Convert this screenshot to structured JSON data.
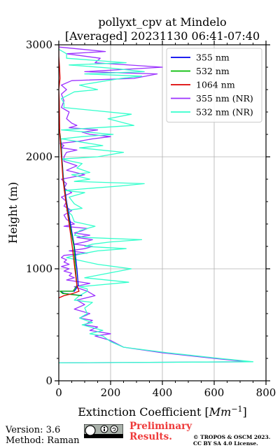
{
  "chart_data": {
    "type": "line",
    "title": "pollyxt_cpv at Mindelo",
    "subtitle": "[Averaged] 20231130 06:41-07:40",
    "xlabel_prefix": "Extinction Coefficient [",
    "xlabel_unit": "Mm",
    "xlabel_exp": "−1",
    "xlabel_suffix": "]",
    "ylabel": "Height (m)",
    "xlim": [
      0,
      800
    ],
    "ylim": [
      0,
      3000
    ],
    "xticks": [
      0,
      200,
      400,
      600,
      800
    ],
    "yticks": [
      0,
      1000,
      2000,
      3000
    ],
    "grid": true,
    "legend_position": "top-right",
    "series": [
      {
        "name": "355 nm",
        "color": "#0000ee",
        "points": [
          [
            90,
            760
          ],
          [
            20,
            780
          ],
          [
            5,
            800
          ],
          [
            60,
            800
          ],
          [
            75,
            850
          ],
          [
            70,
            1000
          ],
          [
            60,
            1200
          ],
          [
            45,
            1400
          ],
          [
            30,
            1600
          ],
          [
            18,
            1800
          ],
          [
            12,
            2000
          ],
          [
            10,
            2100
          ],
          [
            5,
            2200
          ],
          [
            0,
            2250
          ]
        ]
      },
      {
        "name": "532 nm",
        "color": "#00bb00",
        "points": [
          [
            85,
            760
          ],
          [
            15,
            780
          ],
          [
            5,
            800
          ],
          [
            55,
            800
          ],
          [
            70,
            850
          ],
          [
            65,
            1000
          ],
          [
            58,
            1200
          ],
          [
            42,
            1400
          ],
          [
            28,
            1600
          ],
          [
            17,
            1800
          ],
          [
            11,
            2000
          ],
          [
            9,
            2100
          ],
          [
            5,
            2200
          ],
          [
            0,
            2250
          ]
        ]
      },
      {
        "name": "1064 nm",
        "color": "#dd0000",
        "points": [
          [
            0,
            740
          ],
          [
            20,
            760
          ],
          [
            55,
            780
          ],
          [
            78,
            800
          ],
          [
            70,
            850
          ],
          [
            62,
            1000
          ],
          [
            52,
            1200
          ],
          [
            40,
            1400
          ],
          [
            27,
            1600
          ],
          [
            16,
            1800
          ],
          [
            10,
            2000
          ],
          [
            7,
            2100
          ],
          [
            4,
            2200
          ],
          [
            3,
            2300
          ],
          [
            2,
            2500
          ],
          [
            0,
            2600
          ],
          [
            5,
            2700
          ],
          [
            3,
            2800
          ],
          [
            0,
            2900
          ],
          [
            0,
            3000
          ]
        ]
      },
      {
        "name": "355 nm (NR)",
        "color": "#9b30ff",
        "points": [
          [
            0,
            160
          ],
          [
            730,
            170
          ],
          [
            600,
            200
          ],
          [
            400,
            250
          ],
          [
            250,
            300
          ],
          [
            200,
            360
          ],
          [
            140,
            400
          ],
          [
            200,
            420
          ],
          [
            120,
            450
          ],
          [
            150,
            480
          ],
          [
            100,
            500
          ],
          [
            130,
            540
          ],
          [
            80,
            560
          ],
          [
            120,
            600
          ],
          [
            60,
            640
          ],
          [
            100,
            680
          ],
          [
            70,
            720
          ],
          [
            140,
            760
          ],
          [
            110,
            800
          ],
          [
            60,
            840
          ],
          [
            120,
            870
          ],
          [
            30,
            900
          ],
          [
            60,
            920
          ],
          [
            40,
            940
          ],
          [
            50,
            960
          ],
          [
            20,
            980
          ],
          [
            40,
            1000
          ],
          [
            10,
            1020
          ],
          [
            40,
            1040
          ],
          [
            20,
            1060
          ],
          [
            30,
            1080
          ],
          [
            10,
            1100
          ],
          [
            20,
            1120
          ],
          [
            110,
            1140
          ],
          [
            40,
            1160
          ],
          [
            100,
            1180
          ],
          [
            130,
            1200
          ],
          [
            60,
            1220
          ],
          [
            100,
            1240
          ],
          [
            130,
            1260
          ],
          [
            70,
            1280
          ],
          [
            120,
            1300
          ],
          [
            60,
            1320
          ],
          [
            90,
            1340
          ],
          [
            110,
            1360
          ],
          [
            20,
            1380
          ],
          [
            60,
            1400
          ],
          [
            30,
            1440
          ],
          [
            20,
            1480
          ],
          [
            50,
            1520
          ],
          [
            20,
            1560
          ],
          [
            30,
            1600
          ],
          [
            10,
            1640
          ],
          [
            50,
            1680
          ],
          [
            20,
            1720
          ],
          [
            30,
            1760
          ],
          [
            10,
            1800
          ],
          [
            100,
            1840
          ],
          [
            30,
            1880
          ],
          [
            70,
            1920
          ],
          [
            20,
            1960
          ],
          [
            20,
            2000
          ],
          [
            30,
            2040
          ],
          [
            70,
            2060
          ],
          [
            10,
            2080
          ],
          [
            20,
            2100
          ],
          [
            5,
            2120
          ],
          [
            80,
            2140
          ],
          [
            130,
            2160
          ],
          [
            200,
            2180
          ],
          [
            120,
            2200
          ],
          [
            90,
            2220
          ],
          [
            150,
            2240
          ],
          [
            40,
            2260
          ],
          [
            70,
            2280
          ],
          [
            50,
            2300
          ],
          [
            30,
            2340
          ],
          [
            40,
            2400
          ],
          [
            10,
            2440
          ],
          [
            20,
            2500
          ],
          [
            10,
            2560
          ],
          [
            30,
            2600
          ],
          [
            10,
            2640
          ],
          [
            50,
            2680
          ],
          [
            290,
            2700
          ],
          [
            380,
            2740
          ],
          [
            100,
            2760
          ],
          [
            400,
            2800
          ],
          [
            140,
            2840
          ],
          [
            160,
            2880
          ],
          [
            30,
            2920
          ],
          [
            180,
            2940
          ],
          [
            0,
            2980
          ],
          [
            0,
            3000
          ]
        ]
      },
      {
        "name": "532 nm (NR)",
        "color": "#33ffcc",
        "points": [
          [
            0,
            160
          ],
          [
            750,
            170
          ],
          [
            620,
            200
          ],
          [
            420,
            250
          ],
          [
            250,
            300
          ],
          [
            200,
            350
          ],
          [
            170,
            400
          ],
          [
            120,
            420
          ],
          [
            170,
            450
          ],
          [
            90,
            500
          ],
          [
            130,
            520
          ],
          [
            80,
            560
          ],
          [
            110,
            600
          ],
          [
            100,
            650
          ],
          [
            130,
            700
          ],
          [
            60,
            720
          ],
          [
            80,
            760
          ],
          [
            110,
            800
          ],
          [
            110,
            820
          ],
          [
            80,
            840
          ],
          [
            270,
            880
          ],
          [
            100,
            920
          ],
          [
            190,
            960
          ],
          [
            280,
            1000
          ],
          [
            150,
            1040
          ],
          [
            30,
            1100
          ],
          [
            80,
            1130
          ],
          [
            150,
            1160
          ],
          [
            260,
            1180
          ],
          [
            100,
            1200
          ],
          [
            130,
            1220
          ],
          [
            200,
            1240
          ],
          [
            320,
            1260
          ],
          [
            100,
            1280
          ],
          [
            60,
            1300
          ],
          [
            80,
            1340
          ],
          [
            140,
            1380
          ],
          [
            60,
            1420
          ],
          [
            50,
            1480
          ],
          [
            30,
            1520
          ],
          [
            90,
            1540
          ],
          [
            60,
            1580
          ],
          [
            40,
            1640
          ],
          [
            100,
            1680
          ],
          [
            20,
            1700
          ],
          [
            240,
            1740
          ],
          [
            330,
            1760
          ],
          [
            60,
            1780
          ],
          [
            120,
            1800
          ],
          [
            50,
            1840
          ],
          [
            120,
            1860
          ],
          [
            70,
            1900
          ],
          [
            90,
            1940
          ],
          [
            10,
            1980
          ],
          [
            150,
            2000
          ],
          [
            250,
            2040
          ],
          [
            80,
            2080
          ],
          [
            170,
            2100
          ],
          [
            10,
            2160
          ],
          [
            90,
            2180
          ],
          [
            210,
            2200
          ],
          [
            10,
            2240
          ],
          [
            290,
            2280
          ],
          [
            190,
            2340
          ],
          [
            280,
            2380
          ],
          [
            20,
            2440
          ],
          [
            20,
            2480
          ],
          [
            10,
            2520
          ],
          [
            60,
            2580
          ],
          [
            150,
            2600
          ],
          [
            80,
            2640
          ],
          [
            240,
            2700
          ],
          [
            320,
            2720
          ],
          [
            100,
            2740
          ],
          [
            330,
            2760
          ],
          [
            210,
            2790
          ],
          [
            40,
            2820
          ],
          [
            260,
            2840
          ],
          [
            30,
            2880
          ],
          [
            30,
            2920
          ],
          [
            0,
            2960
          ],
          [
            0,
            3000
          ]
        ]
      }
    ]
  },
  "footer": {
    "version": "Version: 3.6",
    "method": "Method: Raman",
    "preliminary_line1": "Preliminary",
    "preliminary_line2": "Results.",
    "copyright_line1": "© TROPOS & OSCM 2023.",
    "copyright_line2": "CC BY SA 4.0 License."
  }
}
